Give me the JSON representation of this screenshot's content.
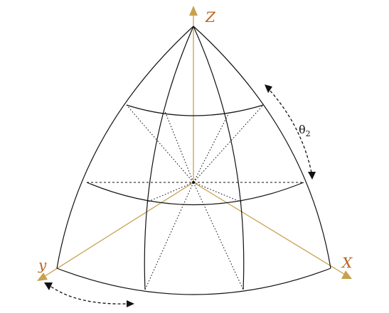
{
  "axes": {
    "z_label": "Z",
    "x_label": "X",
    "y_label": "y"
  },
  "angles": {
    "theta_symbol": "θ",
    "theta_subscript": "2"
  },
  "colors": {
    "axis": "#c8a050",
    "axis_label": "#b8631f",
    "lines": "#111111"
  }
}
